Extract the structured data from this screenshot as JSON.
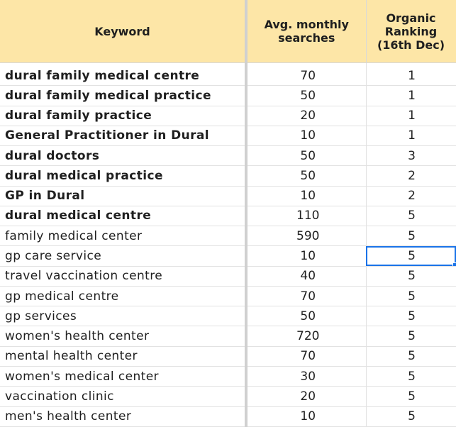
{
  "headers": {
    "keyword": "Keyword",
    "searches_line1": "Avg. monthly",
    "searches_line2": "searches",
    "ranking_line1": "Organic",
    "ranking_line2": "Ranking",
    "ranking_line3": "(16th Dec)"
  },
  "selected_cell": {
    "row": 9,
    "column": "ranking"
  },
  "colors": {
    "header_bg": "#fde6a7",
    "selection": "#1a73e8"
  },
  "rows": [
    {
      "keyword": "dural family medical centre",
      "searches": "70",
      "ranking": "1",
      "bold": true
    },
    {
      "keyword": "dural family medical practice",
      "searches": "50",
      "ranking": "1",
      "bold": true
    },
    {
      "keyword": "dural family practice",
      "searches": "20",
      "ranking": "1",
      "bold": true
    },
    {
      "keyword": "General Practitioner in Dural",
      "searches": "10",
      "ranking": "1",
      "bold": true
    },
    {
      "keyword": "dural doctors",
      "searches": "50",
      "ranking": "3",
      "bold": true
    },
    {
      "keyword": "dural medical practice",
      "searches": "50",
      "ranking": "2",
      "bold": true
    },
    {
      "keyword": "GP in Dural",
      "searches": "10",
      "ranking": "2",
      "bold": true
    },
    {
      "keyword": "dural medical centre",
      "searches": "110",
      "ranking": "5",
      "bold": true
    },
    {
      "keyword": "family medical center",
      "searches": "590",
      "ranking": "5",
      "bold": false
    },
    {
      "keyword": "gp care service",
      "searches": "10",
      "ranking": "5",
      "bold": false
    },
    {
      "keyword": "travel vaccination centre",
      "searches": "40",
      "ranking": "5",
      "bold": false
    },
    {
      "keyword": "gp medical centre",
      "searches": "70",
      "ranking": "5",
      "bold": false
    },
    {
      "keyword": "gp services",
      "searches": "50",
      "ranking": "5",
      "bold": false
    },
    {
      "keyword": "women's health center",
      "searches": "720",
      "ranking": "5",
      "bold": false
    },
    {
      "keyword": "mental health center",
      "searches": "70",
      "ranking": "5",
      "bold": false
    },
    {
      "keyword": "women's medical center",
      "searches": "30",
      "ranking": "5",
      "bold": false
    },
    {
      "keyword": "vaccination clinic",
      "searches": "20",
      "ranking": "5",
      "bold": false
    },
    {
      "keyword": "men's health center",
      "searches": "10",
      "ranking": "5",
      "bold": false
    }
  ]
}
